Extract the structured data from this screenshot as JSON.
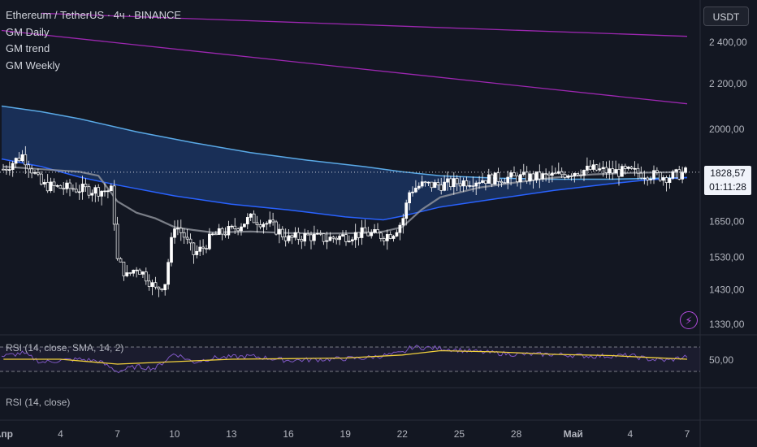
{
  "header": {
    "title": "Ethereum / TetherUS · 4ч · BINANCE",
    "indicators": [
      "GM Daily",
      "GM trend",
      "GM Weekly"
    ],
    "currency": "USDT"
  },
  "last_price": {
    "value": "1828,57",
    "countdown": "01:11:28"
  },
  "rsi_panel": {
    "label": "RSI (14, close, SMA, 14, 2)",
    "value_label": "50,00"
  },
  "rsi_panel2": {
    "label": "RSI (14, close)"
  },
  "colors": {
    "background": "#131722",
    "up": "#ffffff",
    "down": "#ffffff",
    "band_fill": "#1c3b6e",
    "band_upper": "#5aa9e6",
    "band_lower": "#2962ff",
    "ma": "#9598a1",
    "trend": "#9c27b0",
    "rsi": "#7e57c2",
    "rsi_ma": "#f2d13c"
  },
  "chart_data": {
    "type": "candlestick",
    "title": "Ethereum / TetherUS · 4ч · BINANCE",
    "ylim": [
      1330,
      2550
    ],
    "y_ticks": [
      "2 400,00",
      "2 200,00",
      "2000,00",
      "1828,57",
      "1650,00",
      "1530,00",
      "1430,00",
      "1330,00"
    ],
    "y_tick_values": [
      2400,
      2200,
      2000,
      1828.57,
      1650,
      1530,
      1430,
      1330
    ],
    "x_ticks": [
      "Апр",
      "4",
      "7",
      "10",
      "13",
      "16",
      "19",
      "22",
      "25",
      "28",
      "Май",
      "4",
      "7"
    ],
    "x_tick_days": [
      1,
      4,
      7,
      10,
      13,
      16,
      19,
      22,
      25,
      28,
      31,
      34,
      37
    ],
    "x_range_days": [
      0.9,
      37.0
    ],
    "close_anchors": [
      [
        1,
        1840
      ],
      [
        2,
        1895
      ],
      [
        3,
        1780
      ],
      [
        4,
        1770
      ],
      [
        5,
        1765
      ],
      [
        6,
        1760
      ],
      [
        6.7,
        1760
      ],
      [
        7,
        1520
      ],
      [
        7.5,
        1470
      ],
      [
        8,
        1500
      ],
      [
        8.5,
        1470
      ],
      [
        9,
        1430
      ],
      [
        9.5,
        1450
      ],
      [
        10,
        1640
      ],
      [
        10.5,
        1600
      ],
      [
        11,
        1540
      ],
      [
        11.5,
        1560
      ],
      [
        12,
        1600
      ],
      [
        13,
        1620
      ],
      [
        14,
        1660
      ],
      [
        15,
        1640
      ],
      [
        16,
        1590
      ],
      [
        17,
        1600
      ],
      [
        18,
        1590
      ],
      [
        19,
        1600
      ],
      [
        20,
        1610
      ],
      [
        21,
        1600
      ],
      [
        21.5,
        1610
      ],
      [
        22,
        1650
      ],
      [
        22.4,
        1760
      ],
      [
        23,
        1780
      ],
      [
        24,
        1780
      ],
      [
        25,
        1790
      ],
      [
        26,
        1800
      ],
      [
        27,
        1805
      ],
      [
        28,
        1808
      ],
      [
        29,
        1810
      ],
      [
        30,
        1815
      ],
      [
        31,
        1830
      ],
      [
        32,
        1840
      ],
      [
        33,
        1830
      ],
      [
        34,
        1830
      ],
      [
        35,
        1820
      ],
      [
        36,
        1810
      ],
      [
        37,
        1828.57
      ]
    ],
    "indicators": {
      "ma_gray": [
        [
          1,
          1850
        ],
        [
          3,
          1840
        ],
        [
          5,
          1830
        ],
        [
          6,
          1815
        ],
        [
          7,
          1720
        ],
        [
          8,
          1680
        ],
        [
          9,
          1660
        ],
        [
          10,
          1630
        ],
        [
          11,
          1620
        ],
        [
          12,
          1612
        ],
        [
          14,
          1615
        ],
        [
          16,
          1610
        ],
        [
          18,
          1608
        ],
        [
          20,
          1610
        ],
        [
          21,
          1615
        ],
        [
          22,
          1630
        ],
        [
          23,
          1690
        ],
        [
          24,
          1735
        ],
        [
          26,
          1770
        ],
        [
          28,
          1790
        ],
        [
          30,
          1808
        ],
        [
          32,
          1820
        ],
        [
          34,
          1826
        ],
        [
          36,
          1828
        ],
        [
          37,
          1830
        ]
      ],
      "band_upper": [
        [
          0.9,
          2100
        ],
        [
          3,
          2075
        ],
        [
          5,
          2045
        ],
        [
          8,
          1990
        ],
        [
          11,
          1945
        ],
        [
          14,
          1905
        ],
        [
          17,
          1875
        ],
        [
          20,
          1850
        ],
        [
          22,
          1830
        ],
        [
          24,
          1815
        ],
        [
          27,
          1806
        ],
        [
          30,
          1802
        ],
        [
          33,
          1802
        ],
        [
          35,
          1805
        ],
        [
          37,
          1808
        ]
      ],
      "band_lower": [
        [
          0.9,
          1880
        ],
        [
          3,
          1850
        ],
        [
          5,
          1810
        ],
        [
          7,
          1780
        ],
        [
          10,
          1740
        ],
        [
          13,
          1710
        ],
        [
          16,
          1690
        ],
        [
          19,
          1665
        ],
        [
          21,
          1655
        ],
        [
          22,
          1668
        ],
        [
          24,
          1700
        ],
        [
          27,
          1730
        ],
        [
          30,
          1760
        ],
        [
          33,
          1785
        ],
        [
          35,
          1800
        ],
        [
          37,
          1808
        ]
      ],
      "trend_upper": [
        [
          3,
          2550
        ],
        [
          37,
          2430
        ]
      ],
      "trend_lower": [
        [
          0.9,
          2460
        ],
        [
          37,
          2110
        ]
      ]
    },
    "rsi": {
      "ylim": [
        0,
        100
      ],
      "bands": [
        30,
        70
      ],
      "values": [
        [
          1,
          55
        ],
        [
          2,
          60
        ],
        [
          3,
          45
        ],
        [
          4,
          48
        ],
        [
          5,
          50
        ],
        [
          6,
          47
        ],
        [
          7,
          30
        ],
        [
          8,
          38
        ],
        [
          9,
          35
        ],
        [
          10,
          60
        ],
        [
          11,
          45
        ],
        [
          12,
          52
        ],
        [
          14,
          55
        ],
        [
          16,
          48
        ],
        [
          18,
          50
        ],
        [
          20,
          52
        ],
        [
          22,
          60
        ],
        [
          22.5,
          70
        ],
        [
          24,
          68
        ],
        [
          26,
          62
        ],
        [
          28,
          58
        ],
        [
          30,
          58
        ],
        [
          32,
          55
        ],
        [
          34,
          56
        ],
        [
          35,
          50
        ],
        [
          36,
          48
        ],
        [
          37,
          55
        ]
      ],
      "ma": [
        [
          1,
          50
        ],
        [
          4,
          50
        ],
        [
          7,
          42
        ],
        [
          10,
          46
        ],
        [
          13,
          50
        ],
        [
          16,
          51
        ],
        [
          19,
          52
        ],
        [
          22,
          57
        ],
        [
          24,
          64
        ],
        [
          27,
          62
        ],
        [
          30,
          58
        ],
        [
          33,
          56
        ],
        [
          35,
          53
        ],
        [
          37,
          50
        ]
      ]
    }
  }
}
